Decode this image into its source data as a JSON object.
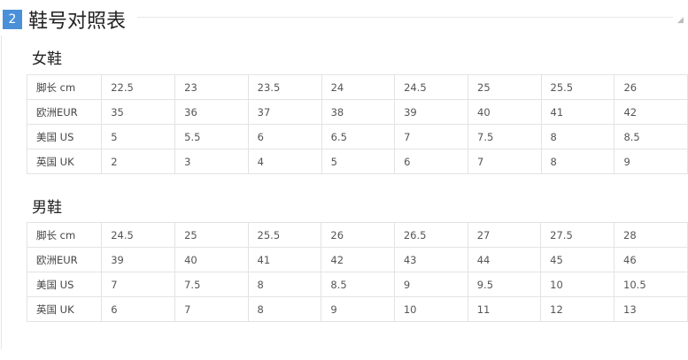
{
  "header": {
    "badge": "2",
    "title": "鞋号对照表",
    "accent": "#4a90d9"
  },
  "sections": [
    {
      "title": "女鞋",
      "rows": [
        [
          "脚长 cm",
          "22.5",
          "23",
          "23.5",
          "24",
          "24.5",
          "25",
          "25.5",
          "26"
        ],
        [
          "欧洲EUR",
          "35",
          "36",
          "37",
          "38",
          "39",
          "40",
          "41",
          "42"
        ],
        [
          "美国 US",
          "5",
          "5.5",
          "6",
          "6.5",
          "7",
          "7.5",
          "8",
          "8.5"
        ],
        [
          "英国 UK",
          "2",
          "3",
          "4",
          "5",
          "6",
          "7",
          "8",
          "9"
        ]
      ]
    },
    {
      "title": "男鞋",
      "rows": [
        [
          "脚长 cm",
          "24.5",
          "25",
          "25.5",
          "26",
          "26.5",
          "27",
          "27.5",
          "28"
        ],
        [
          "欧洲EUR",
          "39",
          "40",
          "41",
          "42",
          "43",
          "44",
          "45",
          "46"
        ],
        [
          "美国 US",
          "7",
          "7.5",
          "8",
          "8.5",
          "9",
          "9.5",
          "10",
          "10.5"
        ],
        [
          "英国 UK",
          "6",
          "7",
          "8",
          "9",
          "10",
          "11",
          "12",
          "13"
        ]
      ]
    }
  ]
}
